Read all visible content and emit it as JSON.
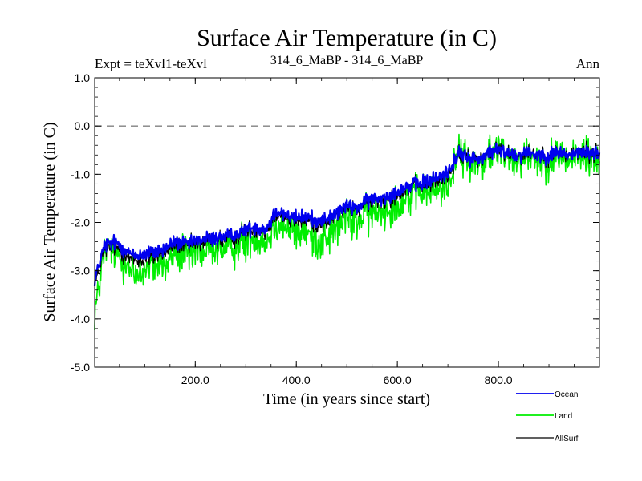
{
  "chart_data": {
    "type": "line",
    "title": "Surface Air Temperature (in C)",
    "subtitle_left": "Expt = teXvl1-teXvl",
    "subtitle_center": "314_6_MaBP - 314_6_MaBP",
    "subtitle_right": "Ann",
    "xlabel": "Time (in years since start)",
    "ylabel": "Surface Air Temperature (in C)",
    "xlim": [
      1,
      1000
    ],
    "ylim": [
      -5.0,
      1.0
    ],
    "xticks": [
      200,
      400,
      600,
      800
    ],
    "xtick_labels": [
      "200.0",
      "400.0",
      "600.0",
      "800.0"
    ],
    "yticks": [
      1.0,
      0.0,
      -1.0,
      -2.0,
      -3.0,
      -4.0,
      -5.0
    ],
    "ytick_labels": [
      "1.0",
      "0.0",
      "-1.0",
      "-2.0",
      "-3.0",
      "-4.0",
      "-5.0"
    ],
    "reference_line": {
      "y": 0.0,
      "style": "dashed",
      "color": "#808080"
    },
    "legend_position": "bottom-right",
    "series": [
      {
        "name": "Land",
        "color": "#00ee00",
        "x": [
          1,
          20,
          40,
          60,
          80,
          100,
          120,
          140,
          160,
          180,
          200,
          220,
          240,
          260,
          280,
          300,
          320,
          340,
          360,
          380,
          400,
          420,
          440,
          460,
          480,
          500,
          520,
          540,
          560,
          580,
          600,
          620,
          640,
          660,
          680,
          700,
          720,
          740,
          760,
          780,
          800,
          820,
          840,
          860,
          880,
          900,
          920,
          940,
          960,
          980,
          1000
        ],
        "values": [
          -3.9,
          -2.6,
          -2.6,
          -2.8,
          -3.1,
          -3.0,
          -2.9,
          -2.9,
          -2.6,
          -2.7,
          -2.6,
          -2.6,
          -2.5,
          -2.55,
          -2.5,
          -2.4,
          -2.3,
          -2.4,
          -2.0,
          -2.1,
          -2.2,
          -2.2,
          -2.4,
          -2.3,
          -2.1,
          -1.9,
          -2.0,
          -1.8,
          -1.8,
          -1.7,
          -1.6,
          -1.5,
          -1.4,
          -1.35,
          -1.35,
          -1.2,
          -0.6,
          -0.7,
          -0.8,
          -0.6,
          -0.5,
          -0.6,
          -0.65,
          -0.6,
          -0.7,
          -0.7,
          -0.6,
          -0.7,
          -0.6,
          -0.6,
          -0.7
        ],
        "noise": 0.34
      },
      {
        "name": "AllSurf",
        "color": "#000000",
        "x": [
          1,
          20,
          40,
          60,
          80,
          100,
          120,
          140,
          160,
          180,
          200,
          220,
          240,
          260,
          280,
          300,
          320,
          340,
          360,
          380,
          400,
          420,
          440,
          460,
          480,
          500,
          520,
          540,
          560,
          580,
          600,
          620,
          640,
          660,
          680,
          700,
          720,
          740,
          760,
          780,
          800,
          820,
          840,
          860,
          880,
          900,
          920,
          940,
          960,
          980,
          1000
        ],
        "values": [
          -3.3,
          -2.55,
          -2.5,
          -2.65,
          -2.8,
          -2.75,
          -2.7,
          -2.65,
          -2.45,
          -2.5,
          -2.45,
          -2.4,
          -2.35,
          -2.35,
          -2.3,
          -2.2,
          -2.15,
          -2.2,
          -1.8,
          -1.9,
          -1.95,
          -1.95,
          -2.05,
          -2.0,
          -1.85,
          -1.7,
          -1.75,
          -1.6,
          -1.55,
          -1.5,
          -1.4,
          -1.3,
          -1.25,
          -1.2,
          -1.15,
          -1.0,
          -0.6,
          -0.65,
          -0.7,
          -0.55,
          -0.5,
          -0.55,
          -0.6,
          -0.55,
          -0.6,
          -0.6,
          -0.55,
          -0.6,
          -0.55,
          -0.55,
          -0.6
        ],
        "noise": 0.16
      },
      {
        "name": "Ocean",
        "color": "#0000ee",
        "x": [
          1,
          20,
          40,
          60,
          80,
          100,
          120,
          140,
          160,
          180,
          200,
          220,
          240,
          260,
          280,
          300,
          320,
          340,
          360,
          380,
          400,
          420,
          440,
          460,
          480,
          500,
          520,
          540,
          560,
          580,
          600,
          620,
          640,
          660,
          680,
          700,
          720,
          740,
          760,
          780,
          800,
          820,
          840,
          860,
          880,
          900,
          920,
          940,
          960,
          980,
          1000
        ],
        "values": [
          -3.2,
          -2.5,
          -2.4,
          -2.55,
          -2.7,
          -2.65,
          -2.6,
          -2.55,
          -2.4,
          -2.45,
          -2.4,
          -2.35,
          -2.3,
          -2.3,
          -2.25,
          -2.15,
          -2.1,
          -2.15,
          -1.75,
          -1.85,
          -1.9,
          -1.9,
          -1.95,
          -1.95,
          -1.8,
          -1.65,
          -1.7,
          -1.55,
          -1.5,
          -1.45,
          -1.35,
          -1.25,
          -1.2,
          -1.15,
          -1.1,
          -0.95,
          -0.6,
          -0.65,
          -0.7,
          -0.55,
          -0.5,
          -0.55,
          -0.6,
          -0.55,
          -0.6,
          -0.6,
          -0.55,
          -0.6,
          -0.55,
          -0.55,
          -0.6
        ],
        "noise": 0.13
      }
    ],
    "legend": [
      {
        "name": "Ocean",
        "color": "#0000ee"
      },
      {
        "name": "Land",
        "color": "#00ee00"
      },
      {
        "name": "AllSurf",
        "color": "#000000"
      }
    ]
  }
}
